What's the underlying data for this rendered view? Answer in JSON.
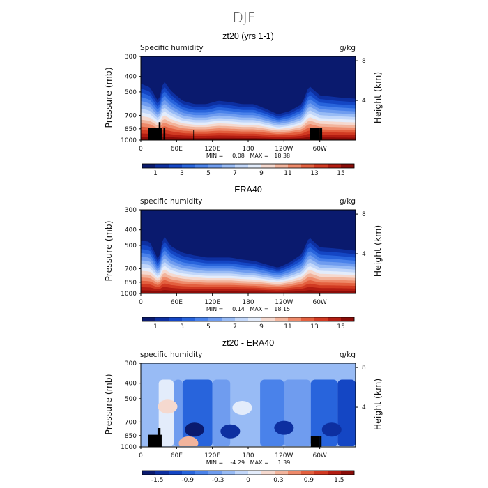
{
  "figure": {
    "title": "DJF"
  },
  "chart_data": [
    {
      "type": "heatmap",
      "title": "zt20 (yrs 1-1)",
      "left_label": "Specific humidity",
      "right_label": "g/kg",
      "xlabel": "",
      "ylabel": "Pressure (mb)",
      "y2label": "Height (km)",
      "x_ticks": [
        "0",
        "60E",
        "120E",
        "180",
        "120W",
        "60W"
      ],
      "x_tick_lon": [
        0,
        60,
        120,
        180,
        240,
        300
      ],
      "xlim": [
        0,
        360
      ],
      "y_ticks": [
        "300",
        "400",
        "500",
        "700",
        "850",
        "1000"
      ],
      "y_tick_values": [
        300,
        400,
        500,
        700,
        850,
        1000
      ],
      "ylim": [
        1000,
        300
      ],
      "y_scale": "log",
      "y2_ticks": [
        "8",
        "4"
      ],
      "y2_tick_values": [
        8,
        4
      ],
      "min_max_text": "MIN =     0.08   MAX =   18.38",
      "colorbar": {
        "labels": [
          "1",
          "3",
          "5",
          "7",
          "9",
          "11",
          "13",
          "15"
        ],
        "colors": [
          "#0a1a6e",
          "#0d2fa0",
          "#1446c4",
          "#2864dc",
          "#4a82ea",
          "#6f9cef",
          "#98bbf5",
          "#c2d7fa",
          "#e3ecfb",
          "#f5d9cf",
          "#f2b49c",
          "#ee8a6a",
          "#e3603f",
          "#d13a22",
          "#b31d12",
          "#8a0c08"
        ]
      },
      "ridge_lon": [
        0,
        15,
        30,
        38,
        50,
        70,
        90,
        110,
        130,
        150,
        170,
        190,
        210,
        230,
        250,
        270,
        282,
        300,
        330,
        360
      ],
      "ridge_depth": [
        0.25,
        0.3,
        0.52,
        0.2,
        0.35,
        0.5,
        0.55,
        0.55,
        0.5,
        0.52,
        0.55,
        0.55,
        0.62,
        0.7,
        0.65,
        0.55,
        0.28,
        0.42,
        0.45,
        0.47
      ],
      "mask": [
        [
          12,
          35,
          0.78
        ],
        [
          30,
          33,
          0.71
        ],
        [
          38,
          41,
          0.78
        ],
        [
          88,
          89,
          0.8
        ],
        [
          283,
          300,
          0.78
        ],
        [
          300,
          304,
          0.78
        ]
      ]
    },
    {
      "type": "heatmap",
      "title": "ERA40",
      "left_label": "specific humidity",
      "right_label": "g/kg",
      "xlabel": "",
      "ylabel": "Pressure (mb)",
      "y2label": "Height (km)",
      "x_ticks": [
        "0",
        "60E",
        "120E",
        "180",
        "120W",
        "60W"
      ],
      "x_tick_lon": [
        0,
        60,
        120,
        180,
        240,
        300
      ],
      "xlim": [
        0,
        360
      ],
      "y_ticks": [
        "300",
        "400",
        "500",
        "700",
        "850",
        "1000"
      ],
      "y_tick_values": [
        300,
        400,
        500,
        700,
        850,
        1000
      ],
      "ylim": [
        1000,
        300
      ],
      "y_scale": "log",
      "y2_ticks": [
        "8",
        "4"
      ],
      "y2_tick_values": [
        8,
        4
      ],
      "min_max_text": "MIN =     0.14   MAX =   18.15",
      "colorbar": {
        "labels": [
          "1",
          "3",
          "5",
          "7",
          "9",
          "11",
          "13",
          "15"
        ],
        "colors": [
          "#0a1a6e",
          "#0d2fa0",
          "#1446c4",
          "#2864dc",
          "#4a82ea",
          "#6f9cef",
          "#98bbf5",
          "#c2d7fa",
          "#e3ecfb",
          "#f5d9cf",
          "#f2b49c",
          "#ee8a6a",
          "#e3603f",
          "#d13a22",
          "#b31d12",
          "#8a0c08"
        ]
      },
      "ridge_lon": [
        0,
        15,
        30,
        38,
        50,
        70,
        90,
        110,
        130,
        150,
        170,
        190,
        210,
        230,
        250,
        270,
        282,
        300,
        330,
        360
      ],
      "ridge_depth": [
        0.3,
        0.32,
        0.6,
        0.22,
        0.38,
        0.48,
        0.52,
        0.55,
        0.55,
        0.55,
        0.58,
        0.6,
        0.65,
        0.7,
        0.62,
        0.5,
        0.25,
        0.4,
        0.42,
        0.45
      ],
      "mask": []
    },
    {
      "type": "heatmap",
      "title": "zt20 - ERA40",
      "left_label": "specific humidity",
      "right_label": "g/kg",
      "xlabel": "",
      "ylabel": "Pressure (mb)",
      "y2label": "Height (km)",
      "x_ticks": [
        "0",
        "60E",
        "120E",
        "180",
        "120W",
        "60W"
      ],
      "x_tick_lon": [
        0,
        60,
        120,
        180,
        240,
        300
      ],
      "xlim": [
        0,
        360
      ],
      "y_ticks": [
        "300",
        "400",
        "500",
        "700",
        "850",
        "1000"
      ],
      "y_tick_values": [
        300,
        400,
        500,
        700,
        850,
        1000
      ],
      "ylim": [
        1000,
        300
      ],
      "y_scale": "log",
      "y2_ticks": [
        "8",
        "4"
      ],
      "y2_tick_values": [
        8,
        4
      ],
      "min_max_text": "MIN =    -4.29   MAX =     1.39",
      "colorbar": {
        "labels": [
          "-1.5",
          "-0.9",
          "-0.3",
          "0",
          "0.3",
          "0.9",
          "1.5"
        ],
        "colors": [
          "#0a1a6e",
          "#0d2fa0",
          "#1446c4",
          "#2864dc",
          "#4a82ea",
          "#6f9cef",
          "#98bbf5",
          "#c2d7fa",
          "#e3ecfb",
          "#f5d9cf",
          "#f2b49c",
          "#ee8a6a",
          "#e3603f",
          "#d13a22",
          "#b31d12",
          "#8a0c08"
        ]
      },
      "diff_columns": [
        {
          "lon": [
            0,
            30
          ],
          "level": 6
        },
        {
          "lon": [
            30,
            55
          ],
          "level": 8
        },
        {
          "lon": [
            55,
            70
          ],
          "level": 5
        },
        {
          "lon": [
            70,
            120
          ],
          "level": 3
        },
        {
          "lon": [
            120,
            150
          ],
          "level": 5
        },
        {
          "lon": [
            150,
            200
          ],
          "level": 6
        },
        {
          "lon": [
            200,
            240
          ],
          "level": 4
        },
        {
          "lon": [
            240,
            285
          ],
          "level": 5
        },
        {
          "lon": [
            285,
            330
          ],
          "level": 3
        },
        {
          "lon": [
            330,
            360
          ],
          "level": 2
        }
      ],
      "diff_blobs": [
        {
          "lon": 45,
          "p": 560,
          "level": 9
        },
        {
          "lon": 170,
          "p": 570,
          "level": 8
        },
        {
          "lon": 90,
          "p": 780,
          "level": 0
        },
        {
          "lon": 150,
          "p": 800,
          "level": 1
        },
        {
          "lon": 240,
          "p": 760,
          "level": 1
        },
        {
          "lon": 320,
          "p": 780,
          "level": 1
        },
        {
          "lon": 80,
          "p": 950,
          "level": 10
        }
      ],
      "mask": [
        [
          12,
          35,
          0.78
        ],
        [
          28,
          33,
          0.7
        ],
        [
          285,
          300,
          0.8
        ],
        [
          300,
          303,
          0.8
        ]
      ]
    }
  ]
}
